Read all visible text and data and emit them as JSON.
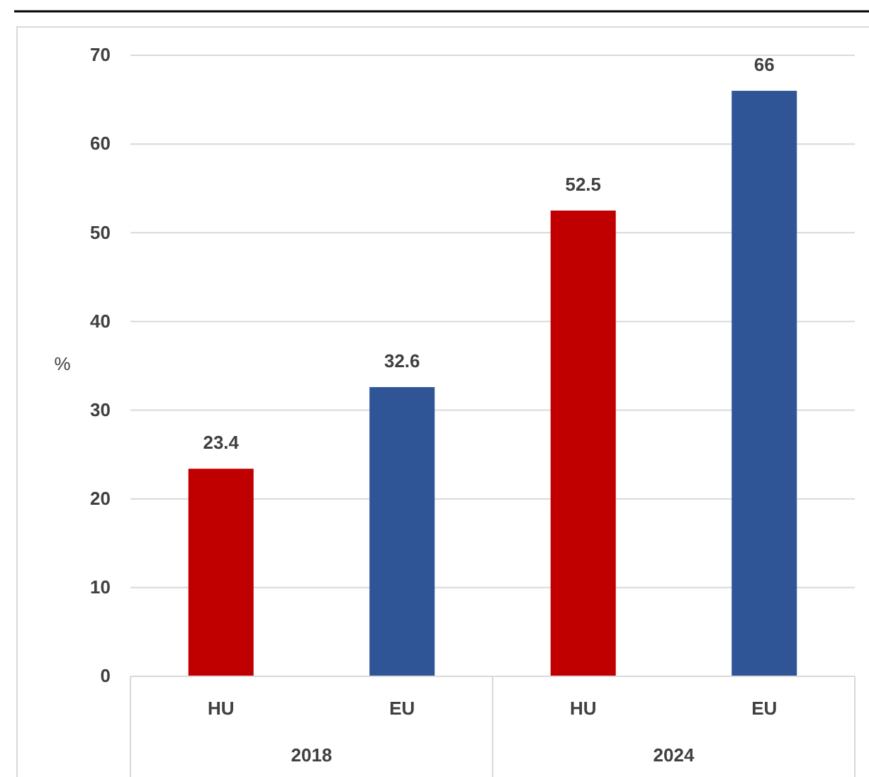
{
  "chart_data": {
    "type": "bar",
    "ylabel": "%",
    "categories": [
      "HU",
      "EU",
      "HU",
      "EU"
    ],
    "values": [
      23.4,
      32.6,
      52.5,
      66
    ],
    "colors": [
      "#c00000",
      "#2f5597",
      "#c00000",
      "#2f5597"
    ],
    "ylim": [
      0,
      70
    ],
    "yticks": [
      0,
      10,
      20,
      30,
      40,
      50,
      60,
      70
    ],
    "grid": "y",
    "data_labels": true,
    "annotations": [
      "2018",
      "2024"
    ]
  }
}
